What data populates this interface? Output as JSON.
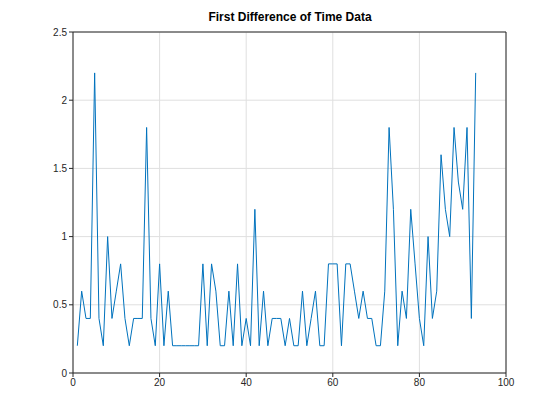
{
  "chart_data": {
    "type": "line",
    "title": "First Difference of Time Data",
    "x": [
      1,
      2,
      3,
      4,
      5,
      6,
      7,
      8,
      9,
      10,
      11,
      12,
      13,
      14,
      15,
      16,
      17,
      18,
      19,
      20,
      21,
      22,
      23,
      24,
      25,
      26,
      27,
      28,
      29,
      30,
      31,
      32,
      33,
      34,
      35,
      36,
      37,
      38,
      39,
      40,
      41,
      42,
      43,
      44,
      45,
      46,
      47,
      48,
      49,
      50,
      51,
      52,
      53,
      54,
      55,
      56,
      57,
      58,
      59,
      60,
      61,
      62,
      63,
      64,
      65,
      66,
      67,
      68,
      69,
      70,
      71,
      72,
      73,
      74,
      75,
      76,
      77,
      78,
      79,
      80,
      81,
      82,
      83,
      84,
      85,
      86,
      87,
      88,
      89,
      90,
      91,
      92,
      93
    ],
    "values": [
      0.2,
      0.6,
      0.4,
      0.4,
      2.2,
      0.4,
      0.2,
      1.0,
      0.4,
      0.6,
      0.8,
      0.4,
      0.2,
      0.4,
      0.4,
      0.4,
      1.8,
      0.4,
      0.2,
      0.8,
      0.2,
      0.6,
      0.2,
      0.2,
      0.2,
      0.2,
      0.2,
      0.2,
      0.2,
      0.8,
      0.2,
      0.8,
      0.6,
      0.2,
      0.2,
      0.6,
      0.2,
      0.8,
      0.2,
      0.4,
      0.2,
      1.2,
      0.2,
      0.6,
      0.2,
      0.4,
      0.4,
      0.4,
      0.2,
      0.4,
      0.2,
      0.2,
      0.6,
      0.2,
      0.4,
      0.6,
      0.2,
      0.2,
      0.8,
      0.8,
      0.8,
      0.2,
      0.8,
      0.8,
      0.6,
      0.4,
      0.6,
      0.4,
      0.4,
      0.2,
      0.2,
      0.6,
      1.8,
      1.2,
      0.2,
      0.6,
      0.4,
      1.2,
      0.8,
      0.4,
      0.2,
      1.0,
      0.4,
      0.6,
      1.6,
      1.2,
      1.0,
      1.8,
      1.4,
      1.2,
      1.8,
      0.4,
      2.2
    ],
    "color": "#0072bd",
    "xlim": [
      0,
      100
    ],
    "ylim": [
      0,
      2.5
    ],
    "xticks": [
      0,
      20,
      40,
      60,
      80,
      100
    ],
    "yticks": [
      0,
      0.5,
      1,
      1.5,
      2,
      2.5
    ],
    "grid": true
  }
}
